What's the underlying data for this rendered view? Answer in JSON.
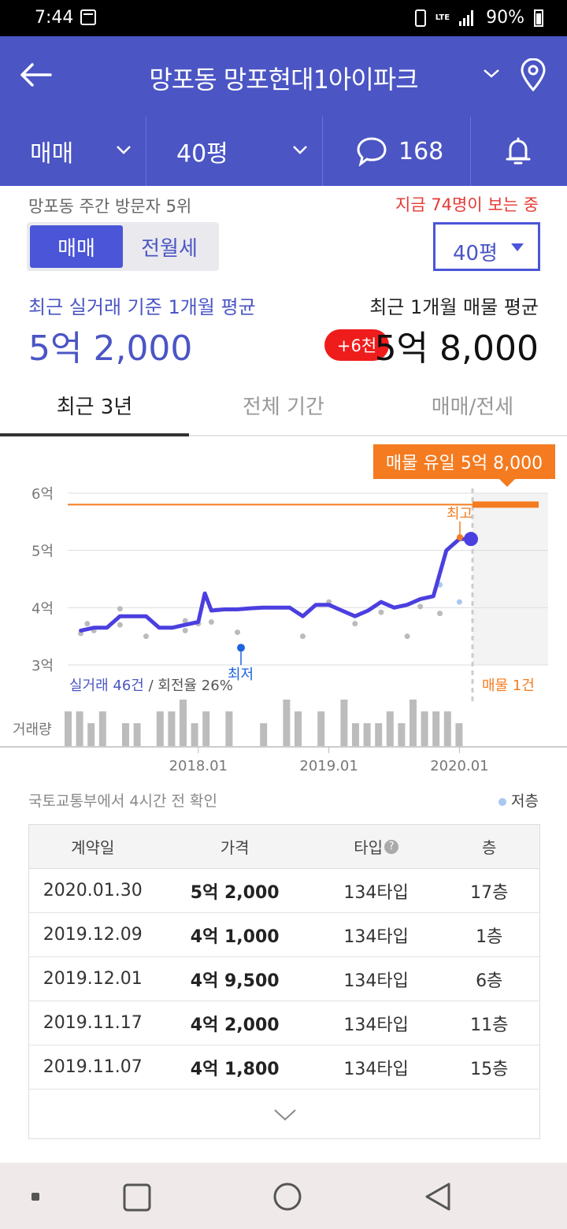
{
  "status": {
    "time": "7:44",
    "battery": "90%",
    "network": "LTE"
  },
  "header": {
    "title": "망포동 망포현대1아이파크"
  },
  "subnav": {
    "deal_type": "매매",
    "size": "40평",
    "comment_count": "168"
  },
  "info": {
    "visitors": "망포동 주간 방문자 5위",
    "watching": "지금 74명이 보는 중"
  },
  "toggle": {
    "sale": "매매",
    "rent": "전월세"
  },
  "size_select": "40평",
  "price": {
    "actual_label": "최근 실거래 기준 1개월 평균",
    "actual_value": "5억 2,000",
    "listing_label": "최근 1개월 매물 평균",
    "listing_value": "5억 8,000",
    "diff": "+6천"
  },
  "tabs": [
    "최근 3년",
    "전체 기간",
    "매매/전세"
  ],
  "chart_data": {
    "type": "line",
    "y_unit": "억",
    "ylim": [
      3,
      6
    ],
    "yticks": [
      "6억",
      "5억",
      "4억",
      "3억"
    ],
    "xticks": [
      "2018.01",
      "2019.01",
      "2020.01"
    ],
    "callout": "매물 유일 5억 8,000",
    "label_max": "최고",
    "label_min": "최저",
    "summary_actual": "실거래 46건",
    "summary_turnover": "/ 회전율 26%",
    "summary_listing": "매물 1건",
    "volume_label": "거래량",
    "series": [
      {
        "name": "실거래",
        "x": [
          2017.1,
          2017.2,
          2017.3,
          2017.4,
          2017.5,
          2017.6,
          2017.7,
          2017.8,
          2017.9,
          2018.0,
          2018.05,
          2018.1,
          2018.2,
          2018.3,
          2018.4,
          2018.5,
          2018.6,
          2018.7,
          2018.8,
          2018.9,
          2019.0,
          2019.1,
          2019.2,
          2019.3,
          2019.4,
          2019.5,
          2019.6,
          2019.7,
          2019.8,
          2019.9,
          2019.95,
          2020.0,
          2020.08
        ],
        "values": [
          3.6,
          3.65,
          3.65,
          3.85,
          3.85,
          3.85,
          3.65,
          3.65,
          3.7,
          3.75,
          4.25,
          3.95,
          3.97,
          3.97,
          3.99,
          4.0,
          4.0,
          4.0,
          3.85,
          4.05,
          4.05,
          3.95,
          3.85,
          3.95,
          4.1,
          4.0,
          4.05,
          4.15,
          4.2,
          5.0,
          5.1,
          5.2,
          5.2
        ]
      }
    ],
    "listing_price": 5.8,
    "max_point": 5.2,
    "min_point": 3.3,
    "scatter_low": [
      [
        2017.1,
        3.55
      ],
      [
        2017.15,
        3.72
      ],
      [
        2017.2,
        3.6
      ],
      [
        2017.4,
        3.98
      ],
      [
        2017.4,
        3.7
      ],
      [
        2017.6,
        3.5
      ],
      [
        2017.9,
        3.77
      ],
      [
        2017.9,
        3.6
      ],
      [
        2018.0,
        3.72
      ],
      [
        2018.1,
        3.75
      ],
      [
        2018.3,
        3.57
      ],
      [
        2018.8,
        3.5
      ],
      [
        2019.0,
        4.1
      ],
      [
        2019.2,
        3.72
      ],
      [
        2019.4,
        3.92
      ],
      [
        2019.6,
        3.5
      ],
      [
        2019.7,
        4.02
      ],
      [
        2019.85,
        3.9
      ],
      [
        2019.85,
        4.4
      ],
      [
        2020.0,
        4.1
      ]
    ],
    "volume": [
      3,
      3,
      2,
      3,
      0,
      2,
      2,
      0,
      3,
      3,
      4,
      2,
      3,
      0,
      3,
      0,
      0,
      2,
      0,
      4,
      3,
      0,
      3,
      0,
      4,
      2,
      2,
      2,
      3,
      2,
      4,
      3,
      3,
      3,
      2
    ]
  },
  "table": {
    "source": "국토교통부에서 4시간 전 확인",
    "legend": "저층",
    "headers": [
      "계약일",
      "가격",
      "타입",
      "층"
    ],
    "rows": [
      [
        "2020.01.30",
        "5억 2,000",
        "134타입",
        "17층"
      ],
      [
        "2019.12.09",
        "4억 1,000",
        "134타입",
        "1층"
      ],
      [
        "2019.12.01",
        "4억 9,500",
        "134타입",
        "6층"
      ],
      [
        "2019.11.17",
        "4억 2,000",
        "134타입",
        "11층"
      ],
      [
        "2019.11.07",
        "4억 1,800",
        "134타입",
        "15층"
      ]
    ]
  },
  "colors": {
    "primary": "#4b55c4",
    "accent": "#f47b20",
    "alert": "#ef1c1c",
    "low_dot": "#a9c8f3"
  }
}
